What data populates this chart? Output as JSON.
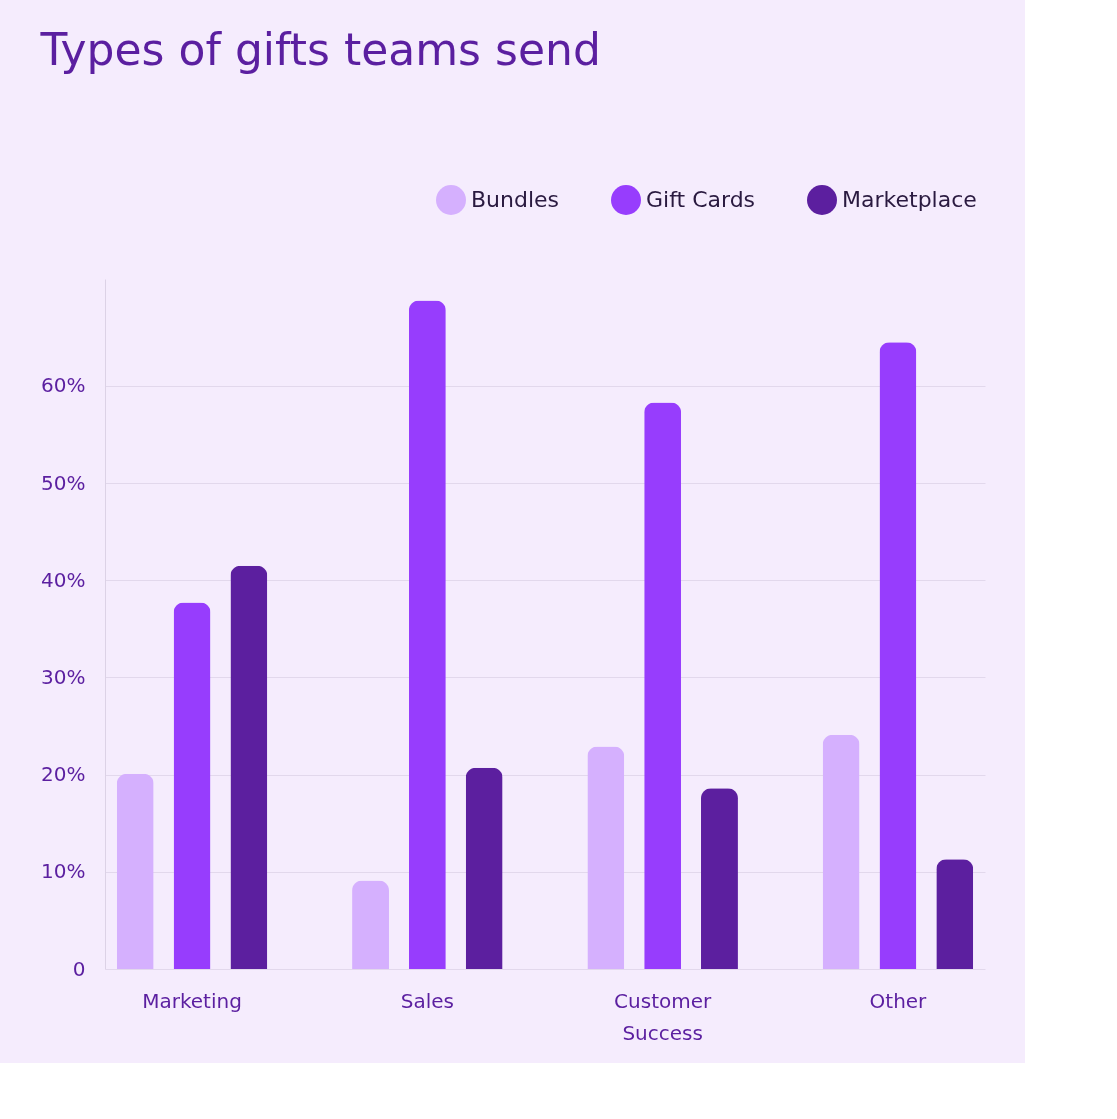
{
  "chart_data": {
    "type": "bar",
    "title": "Types of gifts teams send",
    "categories": [
      "Marketing",
      "Sales",
      "Customer Success",
      "Other"
    ],
    "series": [
      {
        "name": "Bundles",
        "color": "#d5b0fe",
        "values": [
          20.1,
          9.1,
          22.9,
          24.1
        ]
      },
      {
        "name": "Gift Cards",
        "color": "#973dfd",
        "values": [
          37.7,
          68.8,
          58.3,
          64.5
        ]
      },
      {
        "name": "Marketplace",
        "color": "#5c1f9f",
        "values": [
          41.5,
          20.7,
          18.6,
          11.3
        ]
      }
    ],
    "ylim": [
      0,
      71
    ],
    "yticks": [
      0,
      {
        "value": 10,
        "label": "10%"
      },
      {
        "value": 20,
        "label": "20%"
      },
      {
        "value": 30,
        "label": "30%"
      },
      {
        "value": 40,
        "label": "40%"
      },
      {
        "value": 50,
        "label": "50%"
      },
      {
        "value": 60,
        "label": "60%"
      }
    ],
    "grid": "y",
    "legend": "top right"
  }
}
